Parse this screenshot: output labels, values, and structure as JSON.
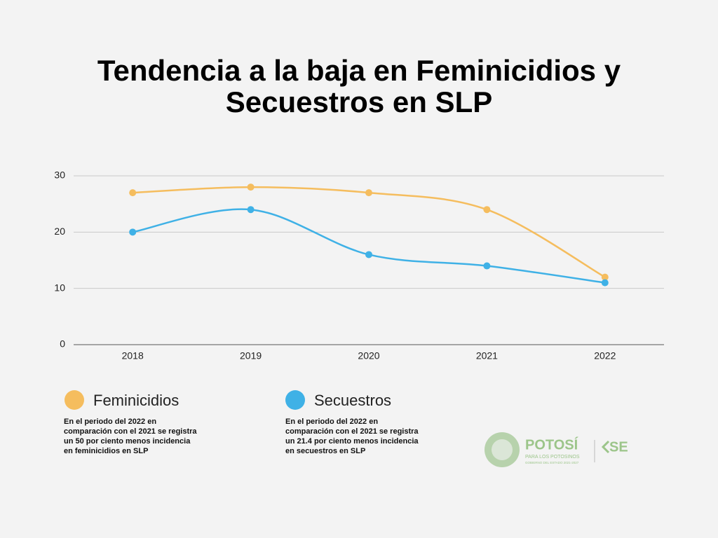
{
  "chart_data": {
    "type": "line",
    "title": "Tendencia a la baja en Feminicidios y Secuestros en SLP",
    "categories": [
      "2018",
      "2019",
      "2020",
      "2021",
      "2022"
    ],
    "series": [
      {
        "name": "Feminicidios",
        "color": "#f5bd5e",
        "values": [
          27,
          28,
          27,
          24,
          12
        ],
        "note": "En el periodo del 2022 en comparación con el 2021 se registra un 50  por ciento menos incidencia en feminicidios en SLP"
      },
      {
        "name": "Secuestros",
        "color": "#3fb1e6",
        "values": [
          20,
          24,
          16,
          14,
          11
        ],
        "note": "En el periodo del 2022 en comparación con el 2021 se registra un 21.4 por ciento menos incidencia en secuestros en SLP"
      }
    ],
    "ylim": [
      0,
      30
    ],
    "yticks": [
      0,
      10,
      20,
      30
    ],
    "grid": true
  },
  "logo": {
    "name": "POTOSÍ",
    "tagline": "PARA LOS POTOSINOS",
    "subtitle": "GOBIERNO DEL ESTADO 2021-2027",
    "agency": "SE"
  }
}
